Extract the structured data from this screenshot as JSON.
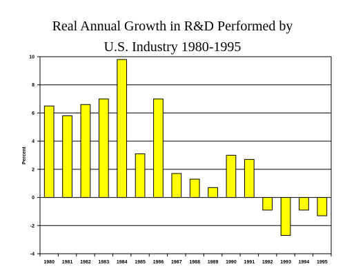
{
  "chart_data": {
    "type": "bar",
    "title_line1": "Real Annual Growth in R&D Performed by",
    "title_line2": "U.S. Industry 1980-1995",
    "xlabel": "",
    "ylabel": "Percent",
    "ylim": [
      -4,
      10
    ],
    "yticks": [
      "10",
      "8",
      "6",
      "4",
      "2",
      "0",
      "-2",
      "-4"
    ],
    "grid": true,
    "bar_color": "#FFFF00",
    "categories": [
      "1980",
      "1981",
      "1982",
      "1983",
      "1984",
      "1985",
      "1986",
      "1987",
      "1988",
      "1989",
      "1990",
      "1991",
      "1992",
      "1993",
      "1994",
      "1995"
    ],
    "values": [
      6.5,
      5.8,
      6.6,
      7.0,
      9.8,
      3.1,
      7.0,
      1.7,
      1.3,
      0.7,
      3.0,
      2.7,
      -0.9,
      -2.7,
      -0.9,
      -1.3
    ]
  }
}
